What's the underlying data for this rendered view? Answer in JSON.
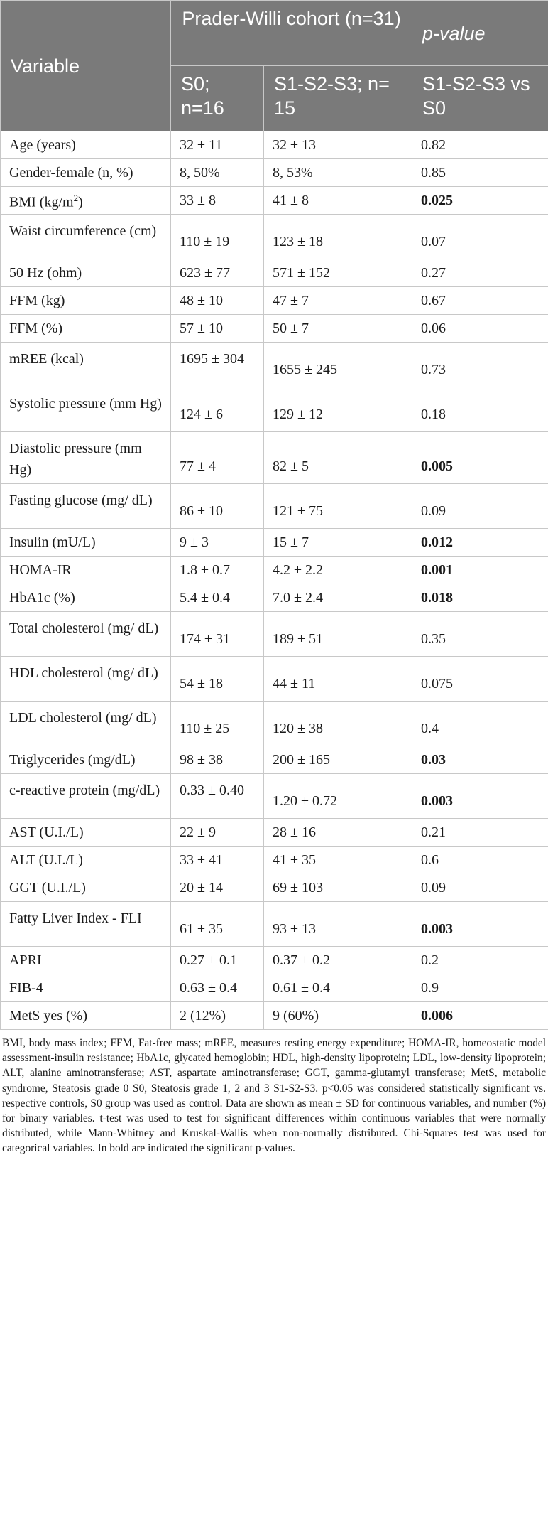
{
  "header": {
    "variable": "Variable",
    "cohort": "Prader-Willi cohort (n=31)",
    "pvalue": "p-value",
    "s0": "S0; n=16",
    "s123": "S1-S2-S3; n= 15",
    "pcomp": "S1-S2-S3 vs S0"
  },
  "rows": [
    {
      "variable": "Age (years)",
      "s0": "32 ± 11",
      "s123": "32 ± 13",
      "p": "0.82",
      "bold": false
    },
    {
      "variable": "Gender-female (n, %)",
      "s0": "8, 50%",
      "s123": "8, 53%",
      "p": "0.85",
      "bold": false
    },
    {
      "variable": "BMI (kg/m2)",
      "s0": "33 ± 8",
      "s123": "41 ± 8",
      "p": "0.025",
      "bold": true
    },
    {
      "variable": "Waist circumference (cm)",
      "s0": "110 ± 19",
      "s123": "123 ± 18",
      "p": "0.07",
      "bold": false
    },
    {
      "variable": "50 Hz (ohm)",
      "s0": "623 ± 77",
      "s123": "571 ± 152",
      "p": "0.27",
      "bold": false
    },
    {
      "variable": "FFM (kg)",
      "s0": "48 ± 10",
      "s123": "47 ± 7",
      "p": "0.67",
      "bold": false
    },
    {
      "variable": "FFM (%)",
      "s0": "57 ± 10",
      "s123": "50 ± 7",
      "p": "0.06",
      "bold": false
    },
    {
      "variable": "mREE (kcal)",
      "s0": "1695 ± 304",
      "s123": "1655 ± 245",
      "p": "0.73",
      "bold": false
    },
    {
      "variable": "Systolic pressure (mm Hg)",
      "s0": "124 ± 6",
      "s123": "129 ± 12",
      "p": "0.18",
      "bold": false
    },
    {
      "variable": "Diastolic pressure (mm Hg)",
      "s0": "77 ± 4",
      "s123": "82 ± 5",
      "p": "0.005",
      "bold": true
    },
    {
      "variable": "Fasting glucose (mg/ dL)",
      "s0": "86 ± 10",
      "s123": "121 ± 75",
      "p": "0.09",
      "bold": false
    },
    {
      "variable": "Insulin (mU/L)",
      "s0": "9 ± 3",
      "s123": "15 ± 7",
      "p": "0.012",
      "bold": true
    },
    {
      "variable": "HOMA-IR",
      "s0": "1.8 ± 0.7",
      "s123": "4.2 ± 2.2",
      "p": "0.001",
      "bold": true
    },
    {
      "variable": "HbA1c (%)",
      "s0": "5.4 ± 0.4",
      "s123": "7.0 ± 2.4",
      "p": "0.018",
      "bold": true
    },
    {
      "variable": "Total cholesterol (mg/ dL)",
      "s0": "174 ± 31",
      "s123": "189 ± 51",
      "p": "0.35",
      "bold": false
    },
    {
      "variable": "HDL cholesterol (mg/ dL)",
      "s0": "54 ± 18",
      "s123": "44 ± 11",
      "p": "0.075",
      "bold": false
    },
    {
      "variable": "LDL cholesterol (mg/ dL)",
      "s0": "110 ± 25",
      "s123": "120 ± 38",
      "p": "0.4",
      "bold": false
    },
    {
      "variable": "Triglycerides (mg/dL)",
      "s0": "98 ± 38",
      "s123": "200 ± 165",
      "p": "0.03",
      "bold": true
    },
    {
      "variable": "c-reactive protein (mg/dL)",
      "s0": "0.33 ± 0.40",
      "s123": "1.20 ± 0.72",
      "p": "0.003",
      "bold": true
    },
    {
      "variable": "AST (U.I./L)",
      "s0": "22 ± 9",
      "s123": "28 ± 16",
      "p": "0.21",
      "bold": false
    },
    {
      "variable": "ALT (U.I./L)",
      "s0": "33 ± 41",
      "s123": "41 ± 35",
      "p": "0.6",
      "bold": false
    },
    {
      "variable": "GGT (U.I./L)",
      "s0": "20 ± 14",
      "s123": "69 ± 103",
      "p": "0.09",
      "bold": false
    },
    {
      "variable": "Fatty Liver Index - FLI",
      "s0": "61 ± 35",
      "s123": "93 ± 13",
      "p": "0.003",
      "bold": true
    },
    {
      "variable": "APRI",
      "s0": "0.27 ± 0.1",
      "s123": "0.37 ± 0.2",
      "p": "0.2",
      "bold": false
    },
    {
      "variable": "FIB-4",
      "s0": "0.63 ± 0.4",
      "s123": "0.61 ± 0.4",
      "p": "0.9",
      "bold": false
    },
    {
      "variable": "MetS yes (%)",
      "s0": "2 (12%)",
      "s123": "9 (60%)",
      "p": "0.006",
      "bold": true
    }
  ],
  "footnote": "BMI, body mass index; FFM, Fat-free mass; mREE, measures resting energy expenditure; HOMA-IR, homeostatic model assessment-insulin resistance; HbA1c, glycated hemoglobin; HDL, high-density lipoprotein; LDL, low-density lipoprotein; ALT, alanine aminotransferase; AST, aspartate aminotransferase; GGT, gamma-glutamyl transferase; MetS, metabolic syndrome, Steatosis grade 0 S0, Steatosis grade 1, 2 and 3 S1-S2-S3. p<0.05 was considered statistically significant vs. respective controls, S0 group was used as control. Data are shown as mean ± SD for continuous variables, and number (%) for binary variables. t-test was used to test for significant differences within continuous variables that were normally distributed, while Mann-Whitney and Kruskal-Wallis when non-normally distributed. Chi-Squares test was used for categorical variables. In bold are indicated the significant p-values."
}
